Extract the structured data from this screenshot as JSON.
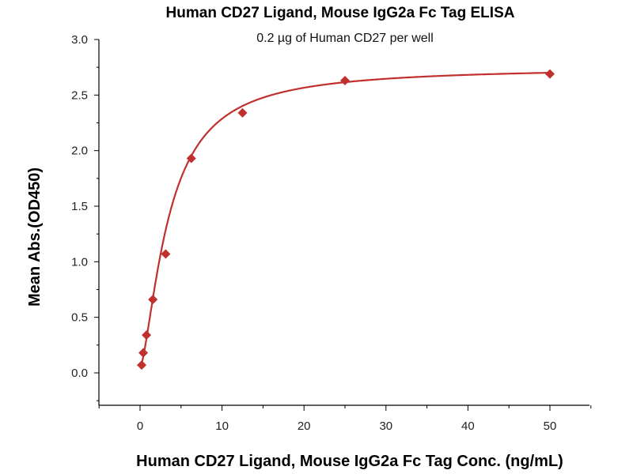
{
  "chart_data": {
    "type": "scatter",
    "title": "Human CD27 Ligand, Mouse IgG2a Fc Tag ELISA",
    "subtitle": "0.2 µg of Human CD27 per well",
    "xlabel": "Human CD27 Ligand, Mouse IgG2a Fc Tag Conc. (ng/mL)",
    "ylabel": "Mean Abs.(OD450)",
    "xlim": [
      -5,
      55
    ],
    "ylim": [
      -0.3,
      3.0
    ],
    "x_ticks": [
      0,
      10,
      20,
      30,
      40,
      50
    ],
    "x_tick_labels": [
      "0",
      "10",
      "20",
      "30",
      "40",
      "50"
    ],
    "y_ticks": [
      0,
      0.5,
      1,
      1.5,
      2,
      2.5,
      3
    ],
    "y_tick_labels": [
      "0.0",
      "0.5",
      "1.0",
      "1.5",
      "2.0",
      "2.5",
      "3.0"
    ],
    "grid": false,
    "series": [
      {
        "name": "ELISA",
        "color": "#c0302e",
        "marker": "diamond",
        "x": [
          0.195,
          0.391,
          0.781,
          1.563,
          3.125,
          6.25,
          12.5,
          25,
          50
        ],
        "y": [
          0.07,
          0.18,
          0.34,
          0.66,
          1.07,
          1.93,
          2.34,
          2.63,
          2.69
        ]
      }
    ],
    "fit": {
      "model": "4PL",
      "bottom": 0.05,
      "top": 2.75,
      "ec50": 3.5,
      "hill": 1.5
    }
  }
}
